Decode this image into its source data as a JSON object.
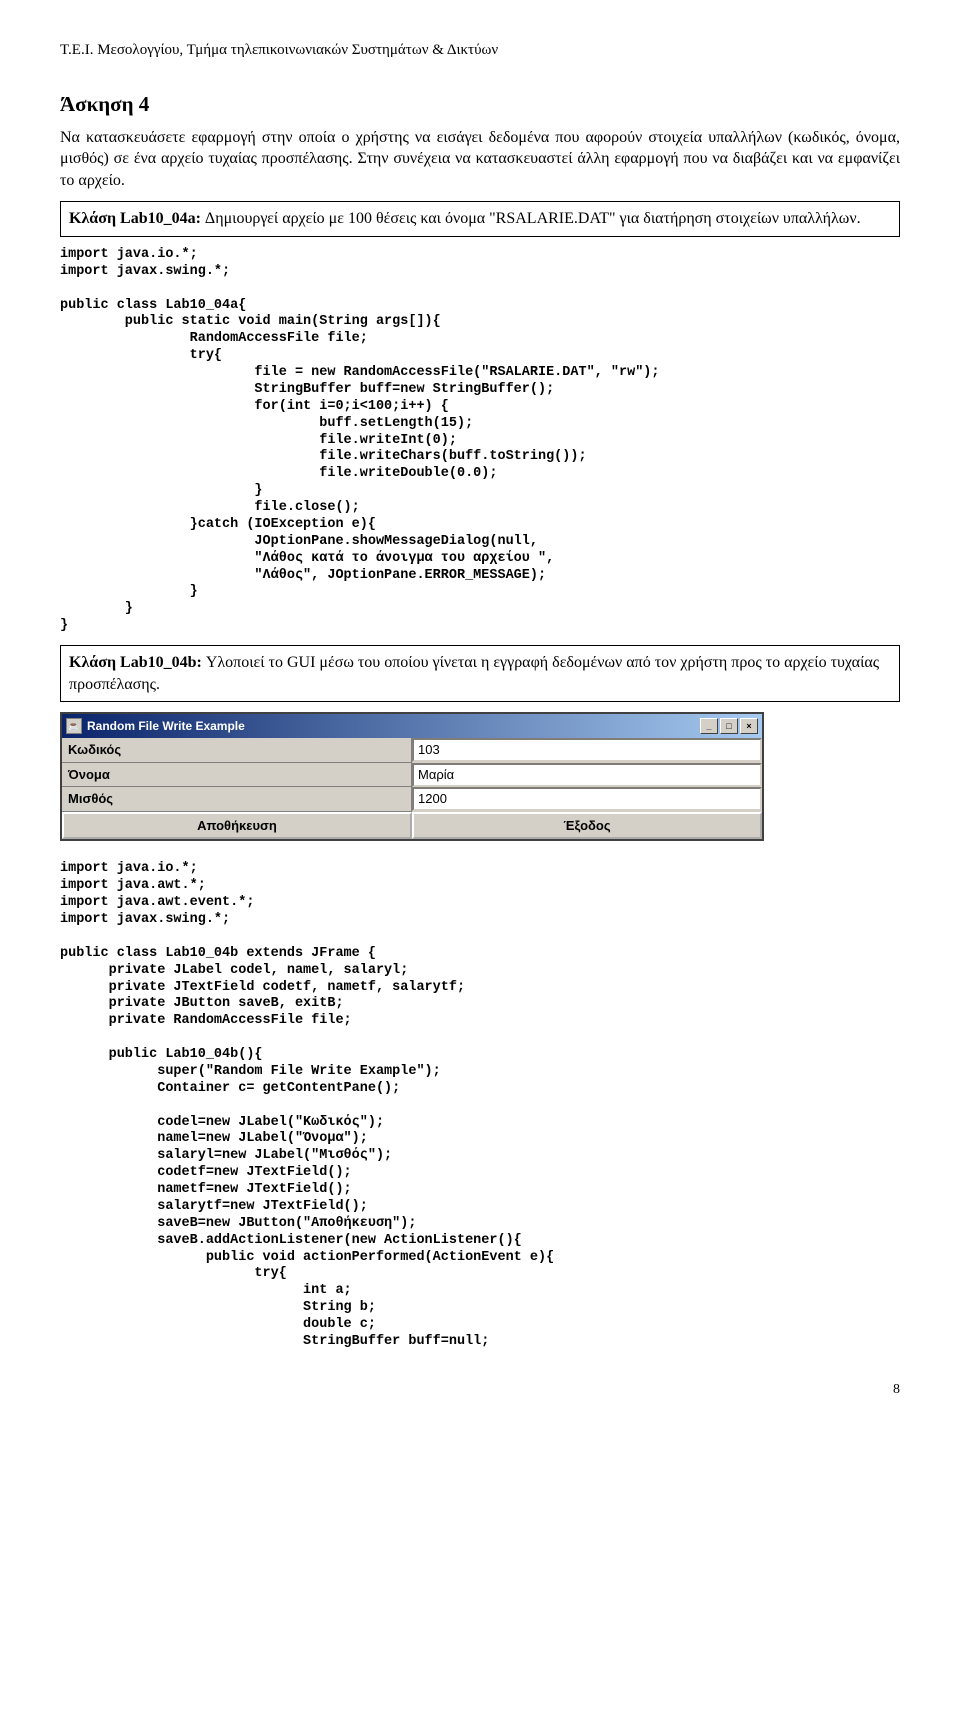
{
  "header": "Τ.Ε.Ι. Μεσολογγίου, Τμήμα τηλεπικοινωνιακών Συστημάτων & Δικτύων",
  "title": "Άσκηση 4",
  "intro": "Να κατασκευάσετε εφαρμογή στην οποία ο χρήστης να εισάγει δεδομένα που αφορούν στοιχεία υπαλλήλων (κωδικός, όνομα, μισθός) σε ένα αρχείο τυχαίας προσπέλασης. Στην συνέχεια να κατασκευαστεί άλλη εφαρμογή που να διαβάζει και να εμφανίζει το αρχείο.",
  "box1_prefix": "Κλάση Lab10_04a:",
  "box1_rest": " Δημιουργεί αρχείο με 100 θέσεις και όνομα \"RSALARIE.DAT\" για διατήρηση στοιχείων υπαλλήλων.",
  "code1": "import java.io.*;\nimport javax.swing.*;\n\npublic class Lab10_04a{\n        public static void main(String args[]){\n                RandomAccessFile file;\n                try{\n                        file = new RandomAccessFile(\"RSALARIE.DAT\", \"rw\");\n                        StringBuffer buff=new StringBuffer();\n                        for(int i=0;i<100;i++) {\n                                buff.setLength(15);\n                                file.writeInt(0);\n                                file.writeChars(buff.toString());\n                                file.writeDouble(0.0);\n                        }\n                        file.close();\n                }catch (IOException e){\n                        JOptionPane.showMessageDialog(null,\n                        \"Λάθος κατά το άνοιγμα του αρχείου \",\n                        \"Λάθος\", JOptionPane.ERROR_MESSAGE);\n                }\n        }\n}",
  "box2_prefix": "Κλάση Lab10_04b:",
  "box2_rest": " Υλοποιεί το GUI μέσω του οποίου γίνεται η εγγραφή  δεδομένων από τον χρήστη προς το αρχείο τυχαίας προσπέλασης.",
  "gui": {
    "title": "Random File Write Example",
    "labels": {
      "code": "Κωδικός",
      "name": "Όνομα",
      "salary": "Μισθός"
    },
    "values": {
      "code": "103",
      "name": "Μαρία",
      "salary": "1200"
    },
    "buttons": {
      "save": "Αποθήκευση",
      "exit": "Έξοδος"
    }
  },
  "code2": "import java.io.*;\nimport java.awt.*;\nimport java.awt.event.*;\nimport javax.swing.*;\n\npublic class Lab10_04b extends JFrame {\n      private JLabel codel, namel, salaryl;\n      private JTextField codetf, nametf, salarytf;\n      private JButton saveB, exitB;\n      private RandomAccessFile file;\n\n      public Lab10_04b(){\n            super(\"Random File Write Example\");\n            Container c= getContentPane();\n\n            codel=new JLabel(\"Κωδικός\");\n            namel=new JLabel(\"Όνομα\");\n            salaryl=new JLabel(\"Μισθός\");\n            codetf=new JTextField();\n            nametf=new JTextField();\n            salarytf=new JTextField();\n            saveB=new JButton(\"Αποθήκευση\");\n            saveB.addActionListener(new ActionListener(){\n                  public void actionPerformed(ActionEvent e){\n                        try{\n                              int a;\n                              String b;\n                              double c;\n                              StringBuffer buff=null;",
  "page": "8"
}
